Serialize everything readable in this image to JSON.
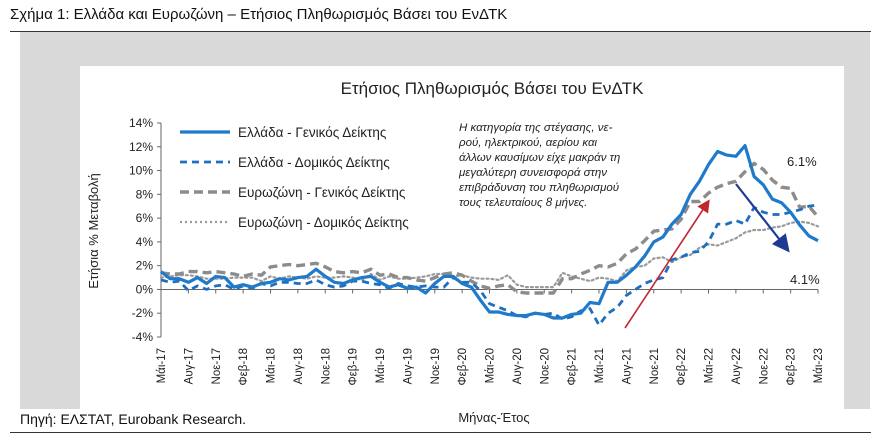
{
  "figure": {
    "caption": "Σχήμα 1: Ελλάδα και Ευρωζώνη – Ετήσιος Πληθωρισμός Βάσει του ΕνΔΤΚ",
    "source": "Πηγή: ΕΛΣΤΑΤ, Eurobank Research."
  },
  "annotation": {
    "lines": [
      "Η κατηγορία της στέγασης, νε-",
      "ρού, ηλεκτρικού, αερίου και",
      "άλλων καυσίμων είχε μακράν τη",
      "μεγαλύτερη συνεισφορά στην",
      "επιβράδυνση του πληθωρισμού",
      "τους τελευταίους 8 μήνες."
    ],
    "label_high": "6.1%",
    "label_low": "4.1%"
  },
  "colors": {
    "greece_headline": "#1f7ac9",
    "greece_core": "#1f6fc0",
    "ez_headline": "#8c8c8c",
    "ez_core": "#9a9a9a",
    "arrow_up": "#c0262d",
    "arrow_down": "#1f3a93",
    "panel": "#d9d9d9"
  },
  "chart_data": {
    "type": "line",
    "title": "Ετήσιος Πληθωρισμός Βάσει του ΕνΔΤΚ",
    "xlabel": "Μήνας-Έτος",
    "ylabel": "Ετήσια % Μεταβολή",
    "ylim": [
      -4,
      14
    ],
    "yticks": [
      "14%",
      "12%",
      "10%",
      "8%",
      "6%",
      "4%",
      "2%",
      "0%",
      "-2%",
      "-4%"
    ],
    "ytick_values": [
      14,
      12,
      10,
      8,
      6,
      4,
      2,
      0,
      -2,
      -4
    ],
    "xtick_labels": [
      "Μάι-17",
      "Αυγ-17",
      "Νοε-17",
      "Φεβ-18",
      "Μάι-18",
      "Αυγ-18",
      "Νοε-18",
      "Φεβ-19",
      "Μάι-19",
      "Αυγ-19",
      "Νοε-19",
      "Φεβ-20",
      "Μάι-20",
      "Αυγ-20",
      "Νοε-20",
      "Φεβ-21",
      "Μάι-21",
      "Αυγ-21",
      "Νοε-21",
      "Φεβ-22",
      "Μάι-22",
      "Αυγ-22",
      "Νοε-22",
      "Φεβ-23",
      "Μάι-23"
    ],
    "x": [
      "Μάι-17",
      "Ιουν-17",
      "Ιουλ-17",
      "Αυγ-17",
      "Σεπ-17",
      "Οκτ-17",
      "Νοε-17",
      "Δεκ-17",
      "Ιαν-18",
      "Φεβ-18",
      "Μαρ-18",
      "Απρ-18",
      "Μάι-18",
      "Ιουν-18",
      "Ιουλ-18",
      "Αυγ-18",
      "Σεπ-18",
      "Οκτ-18",
      "Νοε-18",
      "Δεκ-18",
      "Ιαν-19",
      "Φεβ-19",
      "Μαρ-19",
      "Απρ-19",
      "Μάι-19",
      "Ιουν-19",
      "Ιουλ-19",
      "Αυγ-19",
      "Σεπ-19",
      "Οκτ-19",
      "Νοε-19",
      "Δεκ-19",
      "Ιαν-20",
      "Φεβ-20",
      "Μαρ-20",
      "Απρ-20",
      "Μάι-20",
      "Ιουν-20",
      "Ιουλ-20",
      "Αυγ-20",
      "Σεπ-20",
      "Οκτ-20",
      "Νοε-20",
      "Δεκ-20",
      "Ιαν-21",
      "Φεβ-21",
      "Μαρ-21",
      "Απρ-21",
      "Μάι-21",
      "Ιουν-21",
      "Ιουλ-21",
      "Αυγ-21",
      "Σεπ-21",
      "Οκτ-21",
      "Νοε-21",
      "Δεκ-21",
      "Ιαν-22",
      "Φεβ-22",
      "Μαρ-22",
      "Απρ-22",
      "Μάι-22",
      "Ιουν-22",
      "Ιουλ-22",
      "Αυγ-22",
      "Σεπ-22",
      "Οκτ-22",
      "Νοε-22",
      "Δεκ-22",
      "Ιαν-23",
      "Φεβ-23",
      "Μαρ-23",
      "Απρ-23",
      "Μάι-23"
    ],
    "legend_position": "top-left",
    "grid": false,
    "series": [
      {
        "name": "Ελλάδα - Γενικός Δείκτης",
        "style": "solid",
        "values": [
          1.5,
          0.9,
          0.9,
          0.6,
          1.0,
          0.5,
          1.1,
          1.0,
          0.2,
          0.4,
          0.2,
          0.5,
          0.6,
          0.9,
          0.8,
          1.0,
          1.1,
          1.7,
          1.1,
          0.6,
          0.5,
          0.8,
          1.0,
          1.1,
          0.6,
          0.2,
          0.4,
          0.1,
          0.2,
          -0.3,
          0.5,
          1.1,
          1.1,
          0.5,
          0.2,
          -0.9,
          -1.9,
          -1.9,
          -2.1,
          -2.2,
          -2.2,
          -2.0,
          -2.1,
          -2.4,
          -2.4,
          -2.1,
          -2.0,
          -1.1,
          -1.2,
          0.6,
          0.6,
          1.2,
          1.9,
          2.8,
          4.0,
          4.4,
          5.5,
          6.3,
          8.0,
          9.1,
          10.5,
          11.6,
          11.3,
          11.2,
          12.1,
          9.5,
          8.8,
          7.6,
          7.3,
          6.5,
          5.4,
          4.5,
          4.1
        ]
      },
      {
        "name": "Ελλάδα - Δομικός Δείκτης",
        "style": "dashed",
        "values": [
          0.8,
          0.6,
          0.7,
          -0.1,
          0.3,
          0.0,
          0.3,
          0.4,
          0.0,
          0.3,
          0.1,
          0.5,
          0.3,
          0.6,
          0.6,
          0.5,
          0.5,
          0.8,
          0.4,
          0.2,
          0.3,
          0.7,
          0.7,
          0.5,
          0.4,
          0.1,
          0.5,
          0.3,
          0.2,
          0.3,
          0.2,
          0.2,
          1.0,
          0.6,
          0.6,
          -0.1,
          -1.2,
          -1.5,
          -1.8,
          -2.2,
          -2.3,
          -2.0,
          -2.1,
          -2.0,
          -2.5,
          -2.3,
          -1.8,
          -1.6,
          -3.0,
          -2.0,
          -1.5,
          -0.5,
          0.0,
          0.5,
          0.8,
          1.0,
          2.5,
          2.7,
          3.1,
          3.2,
          4.0,
          5.5,
          5.5,
          5.8,
          5.5,
          6.9,
          6.5,
          6.3,
          6.3,
          6.5,
          6.7,
          7.0,
          7.1
        ]
      },
      {
        "name": "Ευρωζώνη - Γενικός Δείκτης",
        "style": "dashed",
        "values": [
          1.4,
          1.3,
          1.3,
          1.5,
          1.5,
          1.4,
          1.5,
          1.4,
          1.3,
          1.1,
          1.3,
          1.2,
          1.9,
          2.0,
          2.1,
          2.0,
          2.1,
          2.2,
          1.9,
          1.5,
          1.4,
          1.5,
          1.4,
          1.7,
          1.2,
          1.3,
          1.0,
          1.0,
          0.8,
          0.7,
          1.0,
          1.3,
          1.4,
          1.2,
          0.7,
          0.3,
          0.1,
          0.3,
          0.4,
          -0.2,
          -0.3,
          -0.3,
          -0.3,
          -0.3,
          0.9,
          0.9,
          1.3,
          1.6,
          2.0,
          1.9,
          2.2,
          3.0,
          3.4,
          4.1,
          4.9,
          5.0,
          5.1,
          5.9,
          7.4,
          7.4,
          8.1,
          8.6,
          8.9,
          9.1,
          9.9,
          10.6,
          10.1,
          9.2,
          8.6,
          8.5,
          6.9,
          7.0,
          6.1
        ]
      },
      {
        "name": "Ευρωζώνη - Δομικός Δείκτης",
        "style": "dotted",
        "values": [
          1.0,
          1.1,
          1.2,
          1.2,
          1.1,
          0.9,
          0.9,
          0.9,
          1.0,
          1.0,
          1.0,
          0.7,
          1.1,
          0.9,
          1.1,
          1.0,
          0.9,
          1.1,
          1.0,
          1.0,
          1.1,
          1.0,
          0.8,
          1.3,
          0.8,
          1.1,
          0.9,
          0.9,
          1.0,
          1.1,
          1.3,
          1.3,
          1.1,
          1.2,
          1.0,
          0.9,
          0.9,
          0.8,
          1.2,
          0.4,
          0.2,
          0.2,
          0.2,
          0.2,
          1.4,
          1.1,
          0.9,
          0.7,
          1.0,
          0.9,
          0.7,
          1.6,
          1.9,
          2.0,
          2.6,
          2.7,
          2.3,
          2.7,
          2.9,
          3.5,
          3.8,
          3.7,
          4.0,
          4.3,
          4.8,
          5.0,
          5.0,
          5.2,
          5.3,
          5.6,
          5.7,
          5.6,
          5.3
        ]
      }
    ]
  }
}
